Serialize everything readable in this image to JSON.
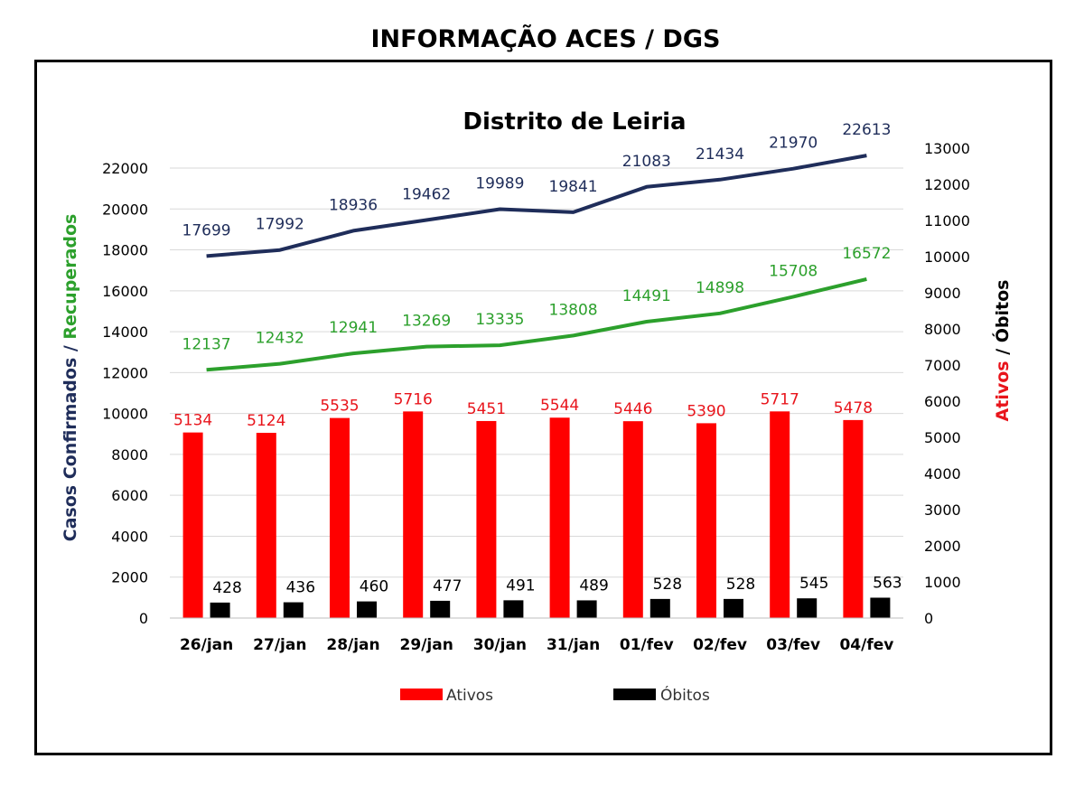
{
  "header": {
    "title": "INFORMAÇÃO ACES / DGS"
  },
  "chart_data": {
    "type": "bar",
    "title": "Distrito de Leiria",
    "categories": [
      "26/jan",
      "27/jan",
      "28/jan",
      "29/jan",
      "30/jan",
      "31/jan",
      "01/fev",
      "02/fev",
      "03/fev",
      "04/fev"
    ],
    "left_axis": {
      "label_part1": "Casos Confirmados / ",
      "label_part2": "Recuperados",
      "ylim": [
        0,
        22000
      ],
      "ticks": [
        0,
        2000,
        4000,
        6000,
        8000,
        10000,
        12000,
        14000,
        16000,
        18000,
        20000,
        22000
      ]
    },
    "right_axis": {
      "label_part1": "Ativos",
      "label_part2": " / Óbitos",
      "ylim": [
        0,
        13000
      ],
      "ticks": [
        0,
        1000,
        2000,
        3000,
        4000,
        5000,
        6000,
        7000,
        8000,
        9000,
        10000,
        11000,
        12000,
        13000
      ]
    },
    "series": [
      {
        "name": "Casos Confirmados",
        "type": "line",
        "axis": "left",
        "color": "#1f2d5a",
        "values": [
          17699,
          17992,
          18936,
          19462,
          19989,
          19841,
          21083,
          21434,
          21970,
          22613
        ]
      },
      {
        "name": "Recuperados",
        "type": "line",
        "axis": "left",
        "color": "#2ca02c",
        "values": [
          12137,
          12432,
          12941,
          13269,
          13335,
          13808,
          14491,
          14898,
          15708,
          16572
        ]
      },
      {
        "name": "Ativos",
        "type": "bar",
        "axis": "right",
        "color": "#ff0000",
        "values": [
          5134,
          5124,
          5535,
          5716,
          5451,
          5544,
          5446,
          5390,
          5717,
          5478
        ]
      },
      {
        "name": "Óbitos",
        "type": "bar",
        "axis": "right",
        "color": "#000000",
        "values": [
          428,
          436,
          460,
          477,
          491,
          489,
          528,
          528,
          545,
          563
        ]
      }
    ],
    "legend": {
      "position": "bottom",
      "items": [
        {
          "label": "Ativos",
          "color": "#ff0000"
        },
        {
          "label": "Óbitos",
          "color": "#000000"
        }
      ]
    },
    "grid": true
  }
}
